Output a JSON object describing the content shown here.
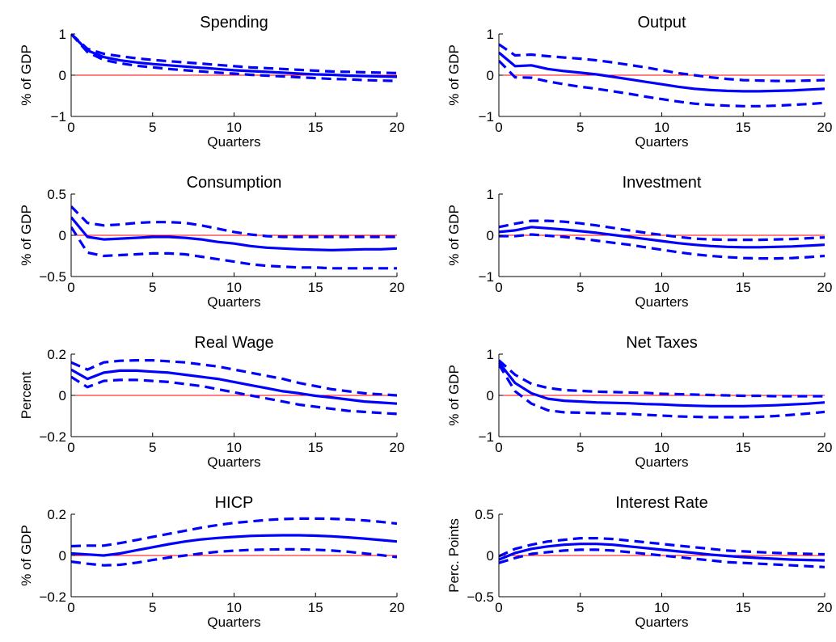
{
  "style": {
    "line_color": "#0000ff",
    "zero_line_color": "#ff0000",
    "axes_color": "#000000"
  },
  "chart_data": [
    {
      "type": "line",
      "title": "Spending",
      "xlabel": "Quarters",
      "ylabel": "% of GDP",
      "xlim": [
        0,
        20
      ],
      "ylim": [
        -1,
        1
      ],
      "xticks": [
        "0",
        "5",
        "10",
        "15",
        "20"
      ],
      "yticks": [
        "−1",
        "0",
        "1"
      ],
      "grid": false,
      "zero_line": true,
      "x": [
        0,
        1,
        2,
        3,
        4,
        5,
        6,
        7,
        8,
        9,
        10,
        11,
        12,
        13,
        14,
        15,
        16,
        17,
        18,
        19,
        20
      ],
      "series": [
        {
          "role": "estimate",
          "dash": false,
          "values": [
            1.0,
            0.6,
            0.44,
            0.36,
            0.31,
            0.27,
            0.24,
            0.21,
            0.18,
            0.15,
            0.12,
            0.1,
            0.08,
            0.06,
            0.04,
            0.02,
            0.01,
            -0.01,
            -0.02,
            -0.03,
            -0.04
          ]
        },
        {
          "role": "upper band",
          "dash": true,
          "values": [
            1.0,
            0.64,
            0.52,
            0.46,
            0.41,
            0.37,
            0.34,
            0.31,
            0.28,
            0.25,
            0.22,
            0.19,
            0.17,
            0.15,
            0.13,
            0.11,
            0.09,
            0.08,
            0.07,
            0.06,
            0.05
          ]
        },
        {
          "role": "lower band",
          "dash": true,
          "values": [
            1.0,
            0.56,
            0.37,
            0.29,
            0.23,
            0.19,
            0.15,
            0.12,
            0.09,
            0.06,
            0.04,
            0.01,
            -0.01,
            -0.03,
            -0.05,
            -0.07,
            -0.09,
            -0.1,
            -0.12,
            -0.13,
            -0.14
          ]
        }
      ]
    },
    {
      "type": "line",
      "title": "Output",
      "xlabel": "Quarters",
      "ylabel": "% of GDP",
      "xlim": [
        0,
        20
      ],
      "ylim": [
        -1,
        1
      ],
      "xticks": [
        "0",
        "5",
        "10",
        "15",
        "20"
      ],
      "yticks": [
        "−1",
        "0",
        "1"
      ],
      "grid": false,
      "zero_line": true,
      "x": [
        0,
        1,
        2,
        3,
        4,
        5,
        6,
        7,
        8,
        9,
        10,
        11,
        12,
        13,
        14,
        15,
        16,
        17,
        18,
        19,
        20
      ],
      "series": [
        {
          "role": "estimate",
          "dash": false,
          "values": [
            0.55,
            0.22,
            0.24,
            0.15,
            0.1,
            0.06,
            0.02,
            -0.04,
            -0.1,
            -0.16,
            -0.22,
            -0.28,
            -0.33,
            -0.36,
            -0.38,
            -0.39,
            -0.39,
            -0.38,
            -0.37,
            -0.35,
            -0.33
          ]
        },
        {
          "role": "upper band",
          "dash": true,
          "values": [
            0.75,
            0.48,
            0.5,
            0.46,
            0.43,
            0.4,
            0.36,
            0.31,
            0.25,
            0.19,
            0.12,
            0.05,
            0.0,
            -0.05,
            -0.09,
            -0.12,
            -0.13,
            -0.14,
            -0.14,
            -0.13,
            -0.12
          ]
        },
        {
          "role": "lower band",
          "dash": true,
          "values": [
            0.35,
            -0.05,
            -0.06,
            -0.15,
            -0.22,
            -0.28,
            -0.33,
            -0.39,
            -0.45,
            -0.52,
            -0.58,
            -0.64,
            -0.69,
            -0.72,
            -0.74,
            -0.75,
            -0.75,
            -0.74,
            -0.72,
            -0.7,
            -0.67
          ]
        }
      ]
    },
    {
      "type": "line",
      "title": "Consumption",
      "xlabel": "Quarters",
      "ylabel": "% of GDP",
      "xlim": [
        0,
        20
      ],
      "ylim": [
        -0.5,
        0.5
      ],
      "xticks": [
        "0",
        "5",
        "10",
        "15",
        "20"
      ],
      "yticks": [
        "−0.5",
        "0",
        "0.5"
      ],
      "grid": false,
      "zero_line": true,
      "x": [
        0,
        1,
        2,
        3,
        4,
        5,
        6,
        7,
        8,
        9,
        10,
        11,
        12,
        13,
        14,
        15,
        16,
        17,
        18,
        19,
        20
      ],
      "series": [
        {
          "role": "estimate",
          "dash": false,
          "values": [
            0.22,
            -0.02,
            -0.05,
            -0.04,
            -0.03,
            -0.02,
            -0.02,
            -0.03,
            -0.05,
            -0.08,
            -0.1,
            -0.13,
            -0.15,
            -0.16,
            -0.17,
            -0.175,
            -0.18,
            -0.175,
            -0.17,
            -0.17,
            -0.16
          ]
        },
        {
          "role": "upper band",
          "dash": true,
          "values": [
            0.35,
            0.15,
            0.12,
            0.13,
            0.15,
            0.16,
            0.16,
            0.15,
            0.12,
            0.08,
            0.04,
            0.01,
            -0.01,
            -0.02,
            -0.02,
            -0.02,
            -0.02,
            -0.02,
            -0.02,
            -0.02,
            -0.02
          ]
        },
        {
          "role": "lower band",
          "dash": true,
          "values": [
            0.1,
            -0.21,
            -0.25,
            -0.24,
            -0.23,
            -0.22,
            -0.22,
            -0.23,
            -0.26,
            -0.29,
            -0.32,
            -0.35,
            -0.37,
            -0.38,
            -0.39,
            -0.39,
            -0.4,
            -0.4,
            -0.4,
            -0.4,
            -0.4
          ]
        }
      ]
    },
    {
      "type": "line",
      "title": "Investment",
      "xlabel": "Quarters",
      "ylabel": "% of GDP",
      "xlim": [
        0,
        20
      ],
      "ylim": [
        -1,
        1
      ],
      "xticks": [
        "0",
        "5",
        "10",
        "15",
        "20"
      ],
      "yticks": [
        "−1",
        "0",
        "1"
      ],
      "grid": false,
      "zero_line": true,
      "x": [
        0,
        1,
        2,
        3,
        4,
        5,
        6,
        7,
        8,
        9,
        10,
        11,
        12,
        13,
        14,
        15,
        16,
        17,
        18,
        19,
        20
      ],
      "series": [
        {
          "role": "estimate",
          "dash": false,
          "values": [
            0.08,
            0.12,
            0.2,
            0.17,
            0.14,
            0.1,
            0.06,
            0.01,
            -0.04,
            -0.09,
            -0.14,
            -0.19,
            -0.23,
            -0.26,
            -0.28,
            -0.29,
            -0.29,
            -0.28,
            -0.27,
            -0.25,
            -0.23
          ]
        },
        {
          "role": "upper band",
          "dash": true,
          "values": [
            0.2,
            0.28,
            0.35,
            0.35,
            0.33,
            0.29,
            0.24,
            0.18,
            0.12,
            0.06,
            0.01,
            -0.04,
            -0.08,
            -0.1,
            -0.11,
            -0.11,
            -0.11,
            -0.1,
            -0.09,
            -0.07,
            -0.05
          ]
        },
        {
          "role": "lower band",
          "dash": true,
          "values": [
            -0.02,
            -0.02,
            0.02,
            -0.01,
            -0.04,
            -0.08,
            -0.13,
            -0.18,
            -0.23,
            -0.29,
            -0.35,
            -0.41,
            -0.46,
            -0.5,
            -0.53,
            -0.55,
            -0.56,
            -0.56,
            -0.55,
            -0.53,
            -0.5
          ]
        }
      ]
    },
    {
      "type": "line",
      "title": "Real Wage",
      "xlabel": "Quarters",
      "ylabel": "Percent",
      "xlim": [
        0,
        20
      ],
      "ylim": [
        -0.2,
        0.2
      ],
      "xticks": [
        "0",
        "5",
        "10",
        "15",
        "20"
      ],
      "yticks": [
        "−0.2",
        "0",
        "0.2"
      ],
      "grid": false,
      "zero_line": true,
      "x": [
        0,
        1,
        2,
        3,
        4,
        5,
        6,
        7,
        8,
        9,
        10,
        11,
        12,
        13,
        14,
        15,
        16,
        17,
        18,
        19,
        20
      ],
      "series": [
        {
          "role": "estimate",
          "dash": false,
          "values": [
            0.125,
            0.08,
            0.11,
            0.12,
            0.12,
            0.115,
            0.11,
            0.1,
            0.09,
            0.08,
            0.065,
            0.05,
            0.035,
            0.02,
            0.01,
            -0.002,
            -0.01,
            -0.02,
            -0.03,
            -0.035,
            -0.04
          ]
        },
        {
          "role": "upper band",
          "dash": true,
          "values": [
            0.16,
            0.125,
            0.16,
            0.168,
            0.17,
            0.17,
            0.165,
            0.16,
            0.15,
            0.14,
            0.125,
            0.11,
            0.095,
            0.08,
            0.06,
            0.045,
            0.03,
            0.02,
            0.01,
            0.005,
            0.0
          ]
        },
        {
          "role": "lower band",
          "dash": true,
          "values": [
            0.09,
            0.04,
            0.07,
            0.075,
            0.075,
            0.07,
            0.065,
            0.055,
            0.045,
            0.03,
            0.015,
            0.0,
            -0.015,
            -0.03,
            -0.045,
            -0.055,
            -0.065,
            -0.075,
            -0.08,
            -0.085,
            -0.09
          ]
        }
      ]
    },
    {
      "type": "line",
      "title": "Net Taxes",
      "xlabel": "Quarters",
      "ylabel": "% of GDP",
      "xlim": [
        0,
        20
      ],
      "ylim": [
        -1,
        1
      ],
      "xticks": [
        "0",
        "5",
        "10",
        "15",
        "20"
      ],
      "yticks": [
        "−1",
        "0",
        "1"
      ],
      "grid": false,
      "zero_line": true,
      "x": [
        0,
        1,
        2,
        3,
        4,
        5,
        6,
        7,
        8,
        9,
        10,
        11,
        12,
        13,
        14,
        15,
        16,
        17,
        18,
        19,
        20
      ],
      "series": [
        {
          "role": "estimate",
          "dash": false,
          "values": [
            0.8,
            0.3,
            0.05,
            -0.08,
            -0.13,
            -0.15,
            -0.17,
            -0.18,
            -0.19,
            -0.21,
            -0.22,
            -0.24,
            -0.25,
            -0.26,
            -0.26,
            -0.26,
            -0.25,
            -0.24,
            -0.22,
            -0.2,
            -0.17
          ]
        },
        {
          "role": "upper band",
          "dash": true,
          "values": [
            0.85,
            0.5,
            0.28,
            0.18,
            0.13,
            0.11,
            0.09,
            0.08,
            0.07,
            0.06,
            0.04,
            0.03,
            0.02,
            0.01,
            0.0,
            -0.01,
            -0.01,
            -0.02,
            -0.02,
            -0.02,
            -0.02
          ]
        },
        {
          "role": "lower band",
          "dash": true,
          "values": [
            0.75,
            0.1,
            -0.2,
            -0.36,
            -0.41,
            -0.42,
            -0.43,
            -0.44,
            -0.45,
            -0.47,
            -0.49,
            -0.51,
            -0.52,
            -0.53,
            -0.53,
            -0.53,
            -0.52,
            -0.5,
            -0.47,
            -0.44,
            -0.4
          ]
        }
      ]
    },
    {
      "type": "line",
      "title": "HICP",
      "xlabel": "Quarters",
      "ylabel": "% of GDP",
      "xlim": [
        0,
        20
      ],
      "ylim": [
        -0.2,
        0.2
      ],
      "xticks": [
        "0",
        "5",
        "10",
        "15",
        "20"
      ],
      "yticks": [
        "−0.2",
        "0",
        "0.2"
      ],
      "grid": false,
      "zero_line": true,
      "x": [
        0,
        1,
        2,
        3,
        4,
        5,
        6,
        7,
        8,
        9,
        10,
        11,
        12,
        13,
        14,
        15,
        16,
        17,
        18,
        19,
        20
      ],
      "series": [
        {
          "role": "estimate",
          "dash": false,
          "values": [
            0.01,
            0.005,
            0.0,
            0.01,
            0.025,
            0.04,
            0.055,
            0.068,
            0.078,
            0.085,
            0.09,
            0.095,
            0.097,
            0.098,
            0.098,
            0.096,
            0.093,
            0.088,
            0.082,
            0.075,
            0.068
          ]
        },
        {
          "role": "upper band",
          "dash": true,
          "values": [
            0.045,
            0.048,
            0.048,
            0.06,
            0.075,
            0.09,
            0.105,
            0.12,
            0.135,
            0.148,
            0.158,
            0.165,
            0.172,
            0.177,
            0.179,
            0.179,
            0.178,
            0.175,
            0.17,
            0.163,
            0.155
          ]
        },
        {
          "role": "lower band",
          "dash": true,
          "values": [
            -0.03,
            -0.04,
            -0.048,
            -0.045,
            -0.035,
            -0.022,
            -0.01,
            0.0,
            0.01,
            0.018,
            0.023,
            0.027,
            0.029,
            0.03,
            0.03,
            0.028,
            0.024,
            0.018,
            0.01,
            0.002,
            -0.008
          ]
        }
      ]
    },
    {
      "type": "line",
      "title": "Interest Rate",
      "xlabel": "Quarters",
      "ylabel": "Perc. Points",
      "xlim": [
        0,
        20
      ],
      "ylim": [
        -0.5,
        0.5
      ],
      "xticks": [
        "0",
        "5",
        "10",
        "15",
        "20"
      ],
      "yticks": [
        "−0.5",
        "0",
        "0.5"
      ],
      "grid": false,
      "zero_line": true,
      "x": [
        0,
        1,
        2,
        3,
        4,
        5,
        6,
        7,
        8,
        9,
        10,
        11,
        12,
        13,
        14,
        15,
        16,
        17,
        18,
        19,
        20
      ],
      "series": [
        {
          "role": "estimate",
          "dash": false,
          "values": [
            -0.05,
            0.03,
            0.08,
            0.11,
            0.13,
            0.14,
            0.14,
            0.13,
            0.11,
            0.09,
            0.07,
            0.05,
            0.03,
            0.01,
            -0.005,
            -0.02,
            -0.03,
            -0.04,
            -0.05,
            -0.055,
            -0.06
          ]
        },
        {
          "role": "upper band",
          "dash": true,
          "values": [
            -0.01,
            0.08,
            0.13,
            0.17,
            0.19,
            0.21,
            0.21,
            0.2,
            0.18,
            0.16,
            0.14,
            0.12,
            0.1,
            0.08,
            0.06,
            0.05,
            0.04,
            0.03,
            0.025,
            0.02,
            0.015
          ]
        },
        {
          "role": "lower band",
          "dash": true,
          "values": [
            -0.09,
            -0.03,
            0.02,
            0.04,
            0.06,
            0.07,
            0.07,
            0.06,
            0.04,
            0.02,
            0.0,
            -0.02,
            -0.04,
            -0.06,
            -0.08,
            -0.09,
            -0.1,
            -0.11,
            -0.12,
            -0.13,
            -0.14
          ]
        }
      ]
    }
  ]
}
